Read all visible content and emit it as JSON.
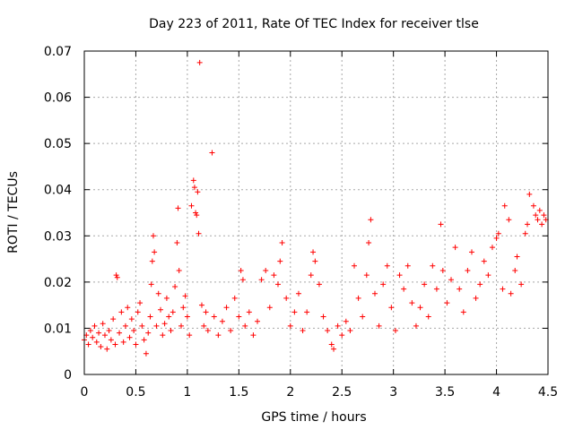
{
  "chart_data": {
    "type": "scatter",
    "title": "Day 223 of 2011, Rate Of TEC Index for receiver tlse",
    "xlabel": "GPS time / hours",
    "ylabel": "ROTI / TECUs",
    "xlim": [
      0,
      4.5
    ],
    "ylim": [
      0,
      0.07
    ],
    "xticks": [
      0,
      0.5,
      1,
      1.5,
      2,
      2.5,
      3,
      3.5,
      4,
      4.5
    ],
    "xtick_labels": [
      "0",
      "0.5",
      "1",
      "1.5",
      "2",
      "2.5",
      "3",
      "3.5",
      "4",
      "4.5"
    ],
    "yticks": [
      0,
      0.01,
      0.02,
      0.03,
      0.04,
      0.05,
      0.06,
      0.07
    ],
    "ytick_labels": [
      "0",
      "0.01",
      "0.02",
      "0.03",
      "0.04",
      "0.05",
      "0.06",
      "0.07"
    ],
    "grid": true,
    "marker": "+",
    "color": "#ff0000",
    "series": [
      {
        "name": "ROTI",
        "points": [
          [
            0.0,
            0.0075
          ],
          [
            0.02,
            0.0085
          ],
          [
            0.04,
            0.0065
          ],
          [
            0.06,
            0.0095
          ],
          [
            0.08,
            0.008
          ],
          [
            0.1,
            0.0105
          ],
          [
            0.12,
            0.007
          ],
          [
            0.14,
            0.009
          ],
          [
            0.16,
            0.006
          ],
          [
            0.18,
            0.011
          ],
          [
            0.2,
            0.0085
          ],
          [
            0.22,
            0.0055
          ],
          [
            0.24,
            0.0095
          ],
          [
            0.26,
            0.0075
          ],
          [
            0.28,
            0.012
          ],
          [
            0.3,
            0.0065
          ],
          [
            0.31,
            0.0215
          ],
          [
            0.32,
            0.021
          ],
          [
            0.34,
            0.009
          ],
          [
            0.36,
            0.0135
          ],
          [
            0.38,
            0.007
          ],
          [
            0.4,
            0.0105
          ],
          [
            0.42,
            0.0145
          ],
          [
            0.44,
            0.008
          ],
          [
            0.46,
            0.012
          ],
          [
            0.48,
            0.0095
          ],
          [
            0.5,
            0.0065
          ],
          [
            0.52,
            0.0135
          ],
          [
            0.54,
            0.0155
          ],
          [
            0.56,
            0.0105
          ],
          [
            0.58,
            0.0075
          ],
          [
            0.6,
            0.0045
          ],
          [
            0.62,
            0.009
          ],
          [
            0.64,
            0.0125
          ],
          [
            0.65,
            0.0195
          ],
          [
            0.66,
            0.0245
          ],
          [
            0.67,
            0.03
          ],
          [
            0.68,
            0.0265
          ],
          [
            0.7,
            0.0105
          ],
          [
            0.72,
            0.0175
          ],
          [
            0.74,
            0.014
          ],
          [
            0.76,
            0.0085
          ],
          [
            0.78,
            0.011
          ],
          [
            0.8,
            0.0165
          ],
          [
            0.82,
            0.0125
          ],
          [
            0.84,
            0.0095
          ],
          [
            0.86,
            0.0135
          ],
          [
            0.88,
            0.019
          ],
          [
            0.9,
            0.0285
          ],
          [
            0.91,
            0.036
          ],
          [
            0.92,
            0.0225
          ],
          [
            0.94,
            0.0105
          ],
          [
            0.96,
            0.0145
          ],
          [
            0.98,
            0.017
          ],
          [
            1.0,
            0.0125
          ],
          [
            1.02,
            0.0085
          ],
          [
            1.04,
            0.0365
          ],
          [
            1.06,
            0.042
          ],
          [
            1.07,
            0.0405
          ],
          [
            1.08,
            0.035
          ],
          [
            1.09,
            0.0345
          ],
          [
            1.1,
            0.0395
          ],
          [
            1.11,
            0.0305
          ],
          [
            1.12,
            0.0675
          ],
          [
            1.14,
            0.015
          ],
          [
            1.16,
            0.0105
          ],
          [
            1.18,
            0.0135
          ],
          [
            1.2,
            0.0095
          ],
          [
            1.24,
            0.048
          ],
          [
            1.26,
            0.0125
          ],
          [
            1.3,
            0.0085
          ],
          [
            1.34,
            0.0115
          ],
          [
            1.38,
            0.0145
          ],
          [
            1.42,
            0.0095
          ],
          [
            1.46,
            0.0165
          ],
          [
            1.5,
            0.0125
          ],
          [
            1.52,
            0.0225
          ],
          [
            1.54,
            0.0205
          ],
          [
            1.56,
            0.0105
          ],
          [
            1.6,
            0.0135
          ],
          [
            1.64,
            0.0085
          ],
          [
            1.68,
            0.0115
          ],
          [
            1.72,
            0.0205
          ],
          [
            1.76,
            0.0225
          ],
          [
            1.8,
            0.0145
          ],
          [
            1.84,
            0.0215
          ],
          [
            1.88,
            0.0195
          ],
          [
            1.9,
            0.0245
          ],
          [
            1.92,
            0.0285
          ],
          [
            1.96,
            0.0165
          ],
          [
            2.0,
            0.0105
          ],
          [
            2.04,
            0.0135
          ],
          [
            2.08,
            0.0175
          ],
          [
            2.12,
            0.0095
          ],
          [
            2.16,
            0.0135
          ],
          [
            2.2,
            0.0215
          ],
          [
            2.22,
            0.0265
          ],
          [
            2.24,
            0.0245
          ],
          [
            2.28,
            0.0195
          ],
          [
            2.32,
            0.0125
          ],
          [
            2.36,
            0.0095
          ],
          [
            2.4,
            0.0065
          ],
          [
            2.42,
            0.0055
          ],
          [
            2.46,
            0.0105
          ],
          [
            2.5,
            0.0085
          ],
          [
            2.54,
            0.0115
          ],
          [
            2.58,
            0.0095
          ],
          [
            2.62,
            0.0235
          ],
          [
            2.66,
            0.0165
          ],
          [
            2.7,
            0.0125
          ],
          [
            2.74,
            0.0215
          ],
          [
            2.76,
            0.0285
          ],
          [
            2.78,
            0.0335
          ],
          [
            2.82,
            0.0175
          ],
          [
            2.86,
            0.0105
          ],
          [
            2.9,
            0.0195
          ],
          [
            2.94,
            0.0235
          ],
          [
            2.98,
            0.0145
          ],
          [
            3.02,
            0.0095
          ],
          [
            3.06,
            0.0215
          ],
          [
            3.1,
            0.0185
          ],
          [
            3.14,
            0.0235
          ],
          [
            3.18,
            0.0155
          ],
          [
            3.22,
            0.0105
          ],
          [
            3.26,
            0.0145
          ],
          [
            3.3,
            0.0195
          ],
          [
            3.34,
            0.0125
          ],
          [
            3.38,
            0.0235
          ],
          [
            3.42,
            0.0185
          ],
          [
            3.46,
            0.0325
          ],
          [
            3.48,
            0.0225
          ],
          [
            3.52,
            0.0155
          ],
          [
            3.56,
            0.0205
          ],
          [
            3.6,
            0.0275
          ],
          [
            3.64,
            0.0185
          ],
          [
            3.68,
            0.0135
          ],
          [
            3.72,
            0.0225
          ],
          [
            3.76,
            0.0265
          ],
          [
            3.8,
            0.0165
          ],
          [
            3.84,
            0.0195
          ],
          [
            3.88,
            0.0245
          ],
          [
            3.92,
            0.0215
          ],
          [
            3.96,
            0.0275
          ],
          [
            4.0,
            0.0295
          ],
          [
            4.02,
            0.0305
          ],
          [
            4.06,
            0.0185
          ],
          [
            4.08,
            0.0365
          ],
          [
            4.12,
            0.0335
          ],
          [
            4.14,
            0.0175
          ],
          [
            4.18,
            0.0225
          ],
          [
            4.2,
            0.0255
          ],
          [
            4.24,
            0.0195
          ],
          [
            4.28,
            0.0305
          ],
          [
            4.3,
            0.0325
          ],
          [
            4.32,
            0.039
          ],
          [
            4.36,
            0.0365
          ],
          [
            4.38,
            0.0345
          ],
          [
            4.4,
            0.0335
          ],
          [
            4.42,
            0.0355
          ],
          [
            4.44,
            0.0325
          ],
          [
            4.46,
            0.0345
          ],
          [
            4.48,
            0.0335
          ]
        ]
      }
    ]
  }
}
